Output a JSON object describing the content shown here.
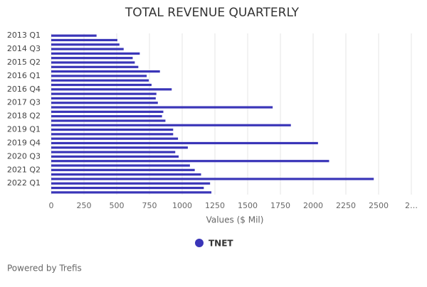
{
  "chart_data": {
    "type": "bar",
    "orientation": "horizontal",
    "title": "TOTAL REVENUE QUARTERLY",
    "categories": [
      "2013 Q1",
      null,
      null,
      "2014 Q3",
      null,
      null,
      "2015 Q2",
      null,
      null,
      "2016 Q1",
      null,
      null,
      "2016 Q4",
      null,
      null,
      "2017 Q3",
      null,
      null,
      "2018 Q2",
      null,
      null,
      "2019 Q1",
      null,
      null,
      "2019 Q4",
      null,
      null,
      "2020 Q3",
      null,
      null,
      "2021 Q2",
      null,
      null,
      "2022 Q1",
      null,
      null
    ],
    "series": [
      {
        "name": "TNET",
        "color": "#3a35b8",
        "values": [
          346,
          505,
          521,
          553,
          676,
          622,
          638,
          665,
          830,
          729,
          745,
          766,
          920,
          803,
          798,
          814,
          1691,
          856,
          846,
          872,
          1830,
          931,
          931,
          968,
          2037,
          1043,
          947,
          973,
          2122,
          1059,
          1096,
          1144,
          2463,
          1213,
          1165,
          1223
        ]
      }
    ],
    "xlabel": "Values ($ Mil)",
    "xlim": [
      0,
      2750
    ],
    "xticks": [
      0,
      250,
      500,
      750,
      1000,
      1250,
      1500,
      1750,
      2000,
      2250,
      2500,
      {
        "value": 2750,
        "label": "2…"
      }
    ],
    "grid": true,
    "legend": "bottom",
    "footer": "Powered by Trefis"
  }
}
